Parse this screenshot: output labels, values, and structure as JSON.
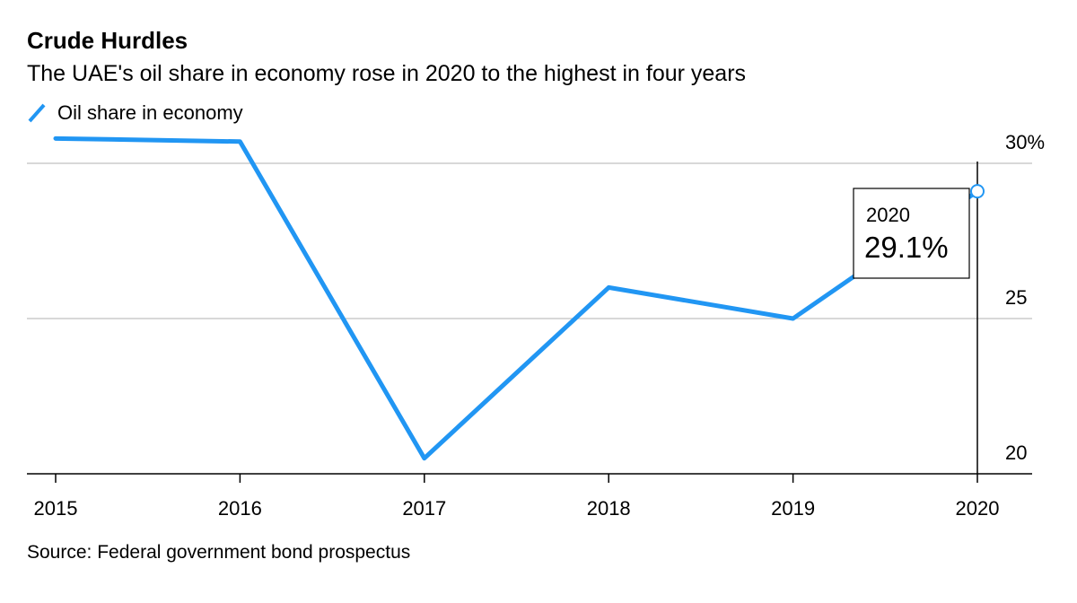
{
  "header": {
    "title": "Crude Hurdles",
    "subtitle": "The UAE's oil share in economy rose in 2020 to the highest in four years"
  },
  "legend": {
    "label": "Oil share in economy"
  },
  "source": "Source: Federal government bond prospectus",
  "colors": {
    "line": "#2196f3",
    "grid": "#cccccc",
    "axis": "#000000"
  },
  "chart_data": {
    "type": "line",
    "title": "Crude Hurdles",
    "subtitle": "The UAE's oil share in economy rose in 2020 to the highest in four years",
    "x": [
      "2015",
      "2016",
      "2017",
      "2018",
      "2019",
      "2020"
    ],
    "series": [
      {
        "name": "Oil share in economy",
        "values": [
          30.8,
          30.7,
          20.5,
          26.0,
          25.0,
          29.1
        ]
      }
    ],
    "y_ticks": [
      {
        "value": 20,
        "label": "20"
      },
      {
        "value": 25,
        "label": "25"
      },
      {
        "value": 30,
        "label": "30%"
      }
    ],
    "ylim": [
      20,
      30
    ],
    "y_axis_position": "right",
    "grid": "horizontal",
    "legend_position": "top-left",
    "annotation": {
      "x": "2020",
      "year_label": "2020",
      "value_label": "29.1%"
    }
  }
}
